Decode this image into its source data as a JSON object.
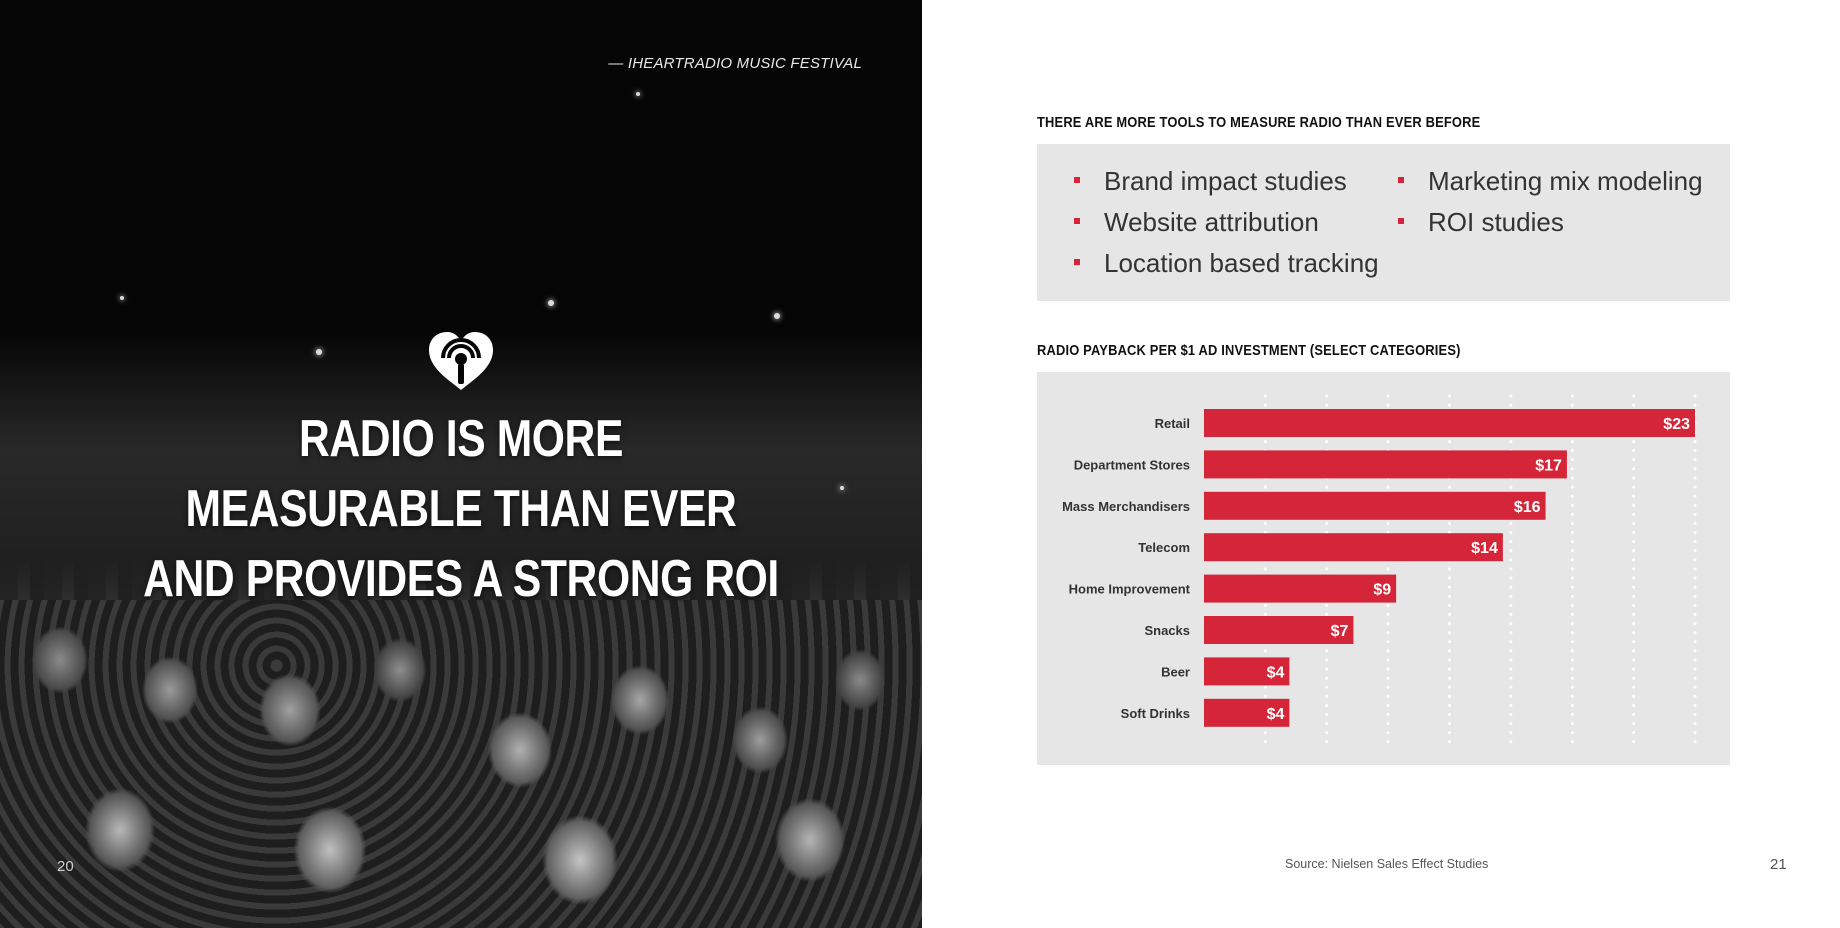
{
  "left_page": {
    "photo_credit": "— IHEARTRADIO MUSIC FESTIVAL",
    "logo_icon": "iheartradio-logo-icon",
    "headline_lines": [
      "RADIO IS MORE",
      "MEASURABLE THAN EVER",
      "AND PROVIDES A STRONG ROI"
    ],
    "page_number": "20"
  },
  "right_page": {
    "tools_heading": "THERE ARE MORE TOOLS TO MEASURE RADIO THAN EVER BEFORE",
    "tools": [
      "Brand impact studies",
      "Website attribution",
      "Location based tracking",
      "Marketing mix modeling",
      "ROI studies"
    ],
    "chart_heading": "RADIO PAYBACK PER $1 AD INVESTMENT (SELECT CATEGORIES)",
    "source": "Source: Nielsen Sales Effect Studies",
    "page_number": "21"
  },
  "colors": {
    "accent": "#d42638",
    "panel": "#e6e6e6"
  },
  "chart_data": {
    "type": "bar",
    "orientation": "horizontal",
    "title": "RADIO PAYBACK PER $1 AD INVESTMENT (SELECT CATEGORIES)",
    "categories": [
      "Retail",
      "Department Stores",
      "Mass Merchandisers",
      "Telecom",
      "Home Improvement",
      "Snacks",
      "Beer",
      "Soft Drinks"
    ],
    "values": [
      23,
      17,
      16,
      14,
      9,
      7,
      4,
      4
    ],
    "value_labels": [
      "$23",
      "$17",
      "$16",
      "$14",
      "$9",
      "$7",
      "$4",
      "$4"
    ],
    "xlim": [
      0,
      23
    ],
    "grid": "dotted vertical lines",
    "color": "#d42638"
  }
}
